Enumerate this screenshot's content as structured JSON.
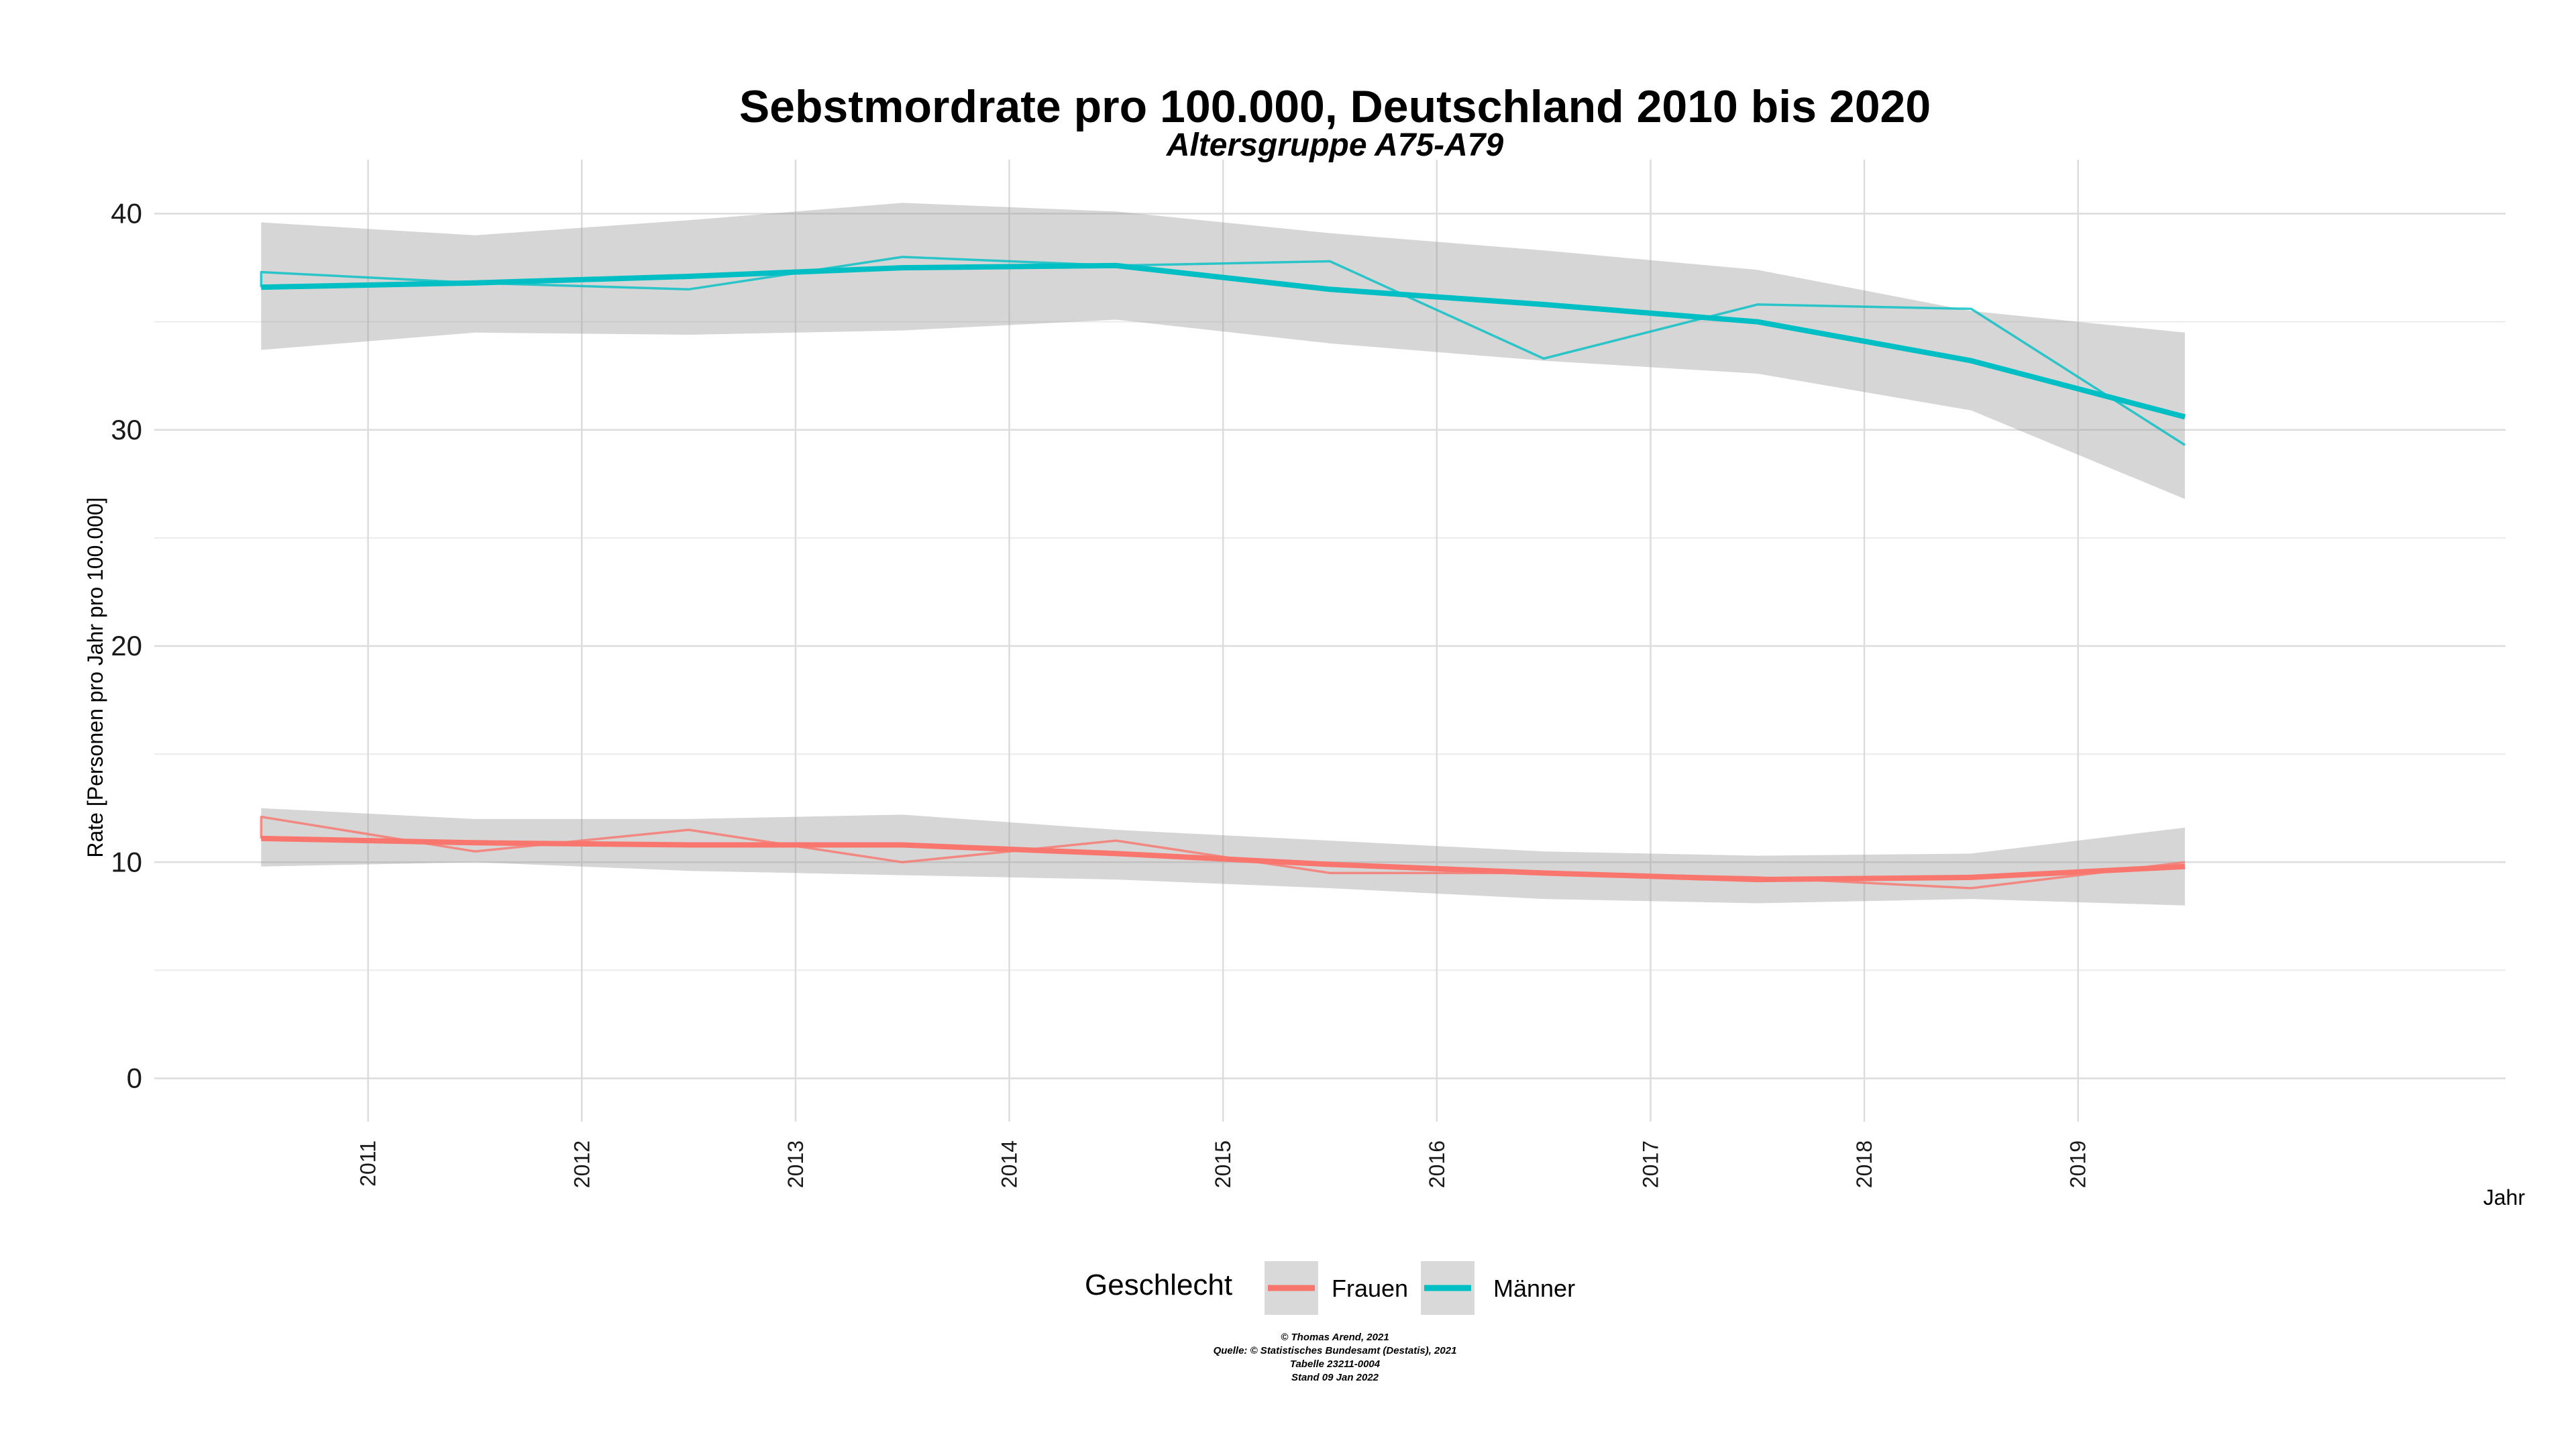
{
  "chart_data": {
    "type": "line",
    "title": "Sebstmordrate pro 100.000, Deutschland  2010 bis 2020",
    "subtitle": "Altersgruppe A75-A79",
    "xlabel": "Jahr",
    "ylabel": "Rate [Personen pro Jahr pro 100.000]",
    "xlim": [
      2010.0,
      2021.0
    ],
    "ylim": [
      -2,
      42.5
    ],
    "x_ticks": [
      2011,
      2012,
      2013,
      2014,
      2015,
      2016,
      2017,
      2018,
      2019
    ],
    "y_ticks": [
      0,
      10,
      20,
      30,
      40
    ],
    "grid": true,
    "legend": {
      "title": "Geschlecht",
      "position": "bottom",
      "entries": [
        "Frauen",
        "Männer"
      ]
    },
    "x": [
      2010.5,
      2011.5,
      2012.5,
      2013.5,
      2014.5,
      2015.5,
      2016.5,
      2017.5,
      2018.5,
      2019.5
    ],
    "series": [
      {
        "name": "Frauen",
        "color": "#f8766d",
        "observed": [
          12.1,
          10.5,
          11.5,
          10.0,
          11.0,
          9.5,
          9.5,
          9.3,
          8.8,
          10.0
        ],
        "smooth": [
          11.1,
          10.9,
          10.8,
          10.8,
          10.4,
          9.9,
          9.5,
          9.2,
          9.3,
          9.8
        ],
        "ci_low": [
          9.8,
          10.0,
          9.6,
          9.4,
          9.2,
          8.8,
          8.3,
          8.1,
          8.3,
          8.0
        ],
        "ci_high": [
          12.5,
          12.0,
          12.0,
          12.2,
          11.5,
          11.0,
          10.5,
          10.3,
          10.4,
          11.6
        ]
      },
      {
        "name": "Männer",
        "color": "#00bfc4",
        "observed": [
          37.3,
          36.8,
          36.5,
          38.0,
          37.6,
          37.8,
          33.3,
          35.8,
          35.6,
          29.3
        ],
        "smooth": [
          36.6,
          36.8,
          37.1,
          37.5,
          37.6,
          36.5,
          35.8,
          35.0,
          33.2,
          30.6
        ],
        "ci_low": [
          33.7,
          34.5,
          34.4,
          34.6,
          35.1,
          34.0,
          33.2,
          32.6,
          30.9,
          26.8
        ],
        "ci_high": [
          39.6,
          39.0,
          39.7,
          40.5,
          40.1,
          39.1,
          38.3,
          37.4,
          35.5,
          34.5
        ]
      }
    ]
  },
  "caption": {
    "line1": "© Thomas Arend, 2021",
    "line2": "Quelle: © Statistisches Bundesamt (Destatis), 2021",
    "line3": "Tabelle 23211-0004",
    "line4": "Stand 09 Jan 2022"
  }
}
